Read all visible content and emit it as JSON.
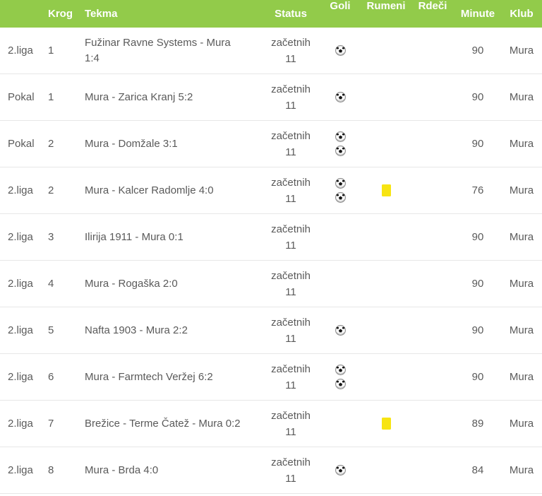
{
  "table": {
    "headers": {
      "league": "",
      "krog": "Krog",
      "tekma": "Tekma",
      "status": "Status",
      "goli": "Goli",
      "rumeni": "Rumeni",
      "rdeci": "Rdeči",
      "minute": "Minute",
      "klub": "Klub"
    },
    "rows": [
      {
        "league": "2.liga",
        "krog": "1",
        "tekma": "Fužinar Ravne Systems - Mura\n1:4",
        "status": "začetnih\n11",
        "goals": 1,
        "yellow_cards": 0,
        "red_cards": 0,
        "minute": "90",
        "klub": "Mura"
      },
      {
        "league": "Pokal",
        "krog": "1",
        "tekma": "Mura - Zarica Kranj 5:2",
        "status": "začetnih\n11",
        "goals": 1,
        "yellow_cards": 0,
        "red_cards": 0,
        "minute": "90",
        "klub": "Mura"
      },
      {
        "league": "Pokal",
        "krog": "2",
        "tekma": "Mura - Domžale 3:1",
        "status": "začetnih\n11",
        "goals": 2,
        "yellow_cards": 0,
        "red_cards": 0,
        "minute": "90",
        "klub": "Mura"
      },
      {
        "league": "2.liga",
        "krog": "2",
        "tekma": "Mura - Kalcer Radomlje 4:0",
        "status": "začetnih\n11",
        "goals": 2,
        "yellow_cards": 1,
        "red_cards": 0,
        "minute": "76",
        "klub": "Mura"
      },
      {
        "league": "2.liga",
        "krog": "3",
        "tekma": "Ilirija 1911 - Mura 0:1",
        "status": "začetnih\n11",
        "goals": 0,
        "yellow_cards": 0,
        "red_cards": 0,
        "minute": "90",
        "klub": "Mura"
      },
      {
        "league": "2.liga",
        "krog": "4",
        "tekma": "Mura - Rogaška 2:0",
        "status": "začetnih\n11",
        "goals": 0,
        "yellow_cards": 0,
        "red_cards": 0,
        "minute": "90",
        "klub": "Mura"
      },
      {
        "league": "2.liga",
        "krog": "5",
        "tekma": "Nafta 1903 - Mura 2:2",
        "status": "začetnih\n11",
        "goals": 1,
        "yellow_cards": 0,
        "red_cards": 0,
        "minute": "90",
        "klub": "Mura"
      },
      {
        "league": "2.liga",
        "krog": "6",
        "tekma": "Mura - Farmtech Veržej 6:2",
        "status": "začetnih\n11",
        "goals": 2,
        "yellow_cards": 0,
        "red_cards": 0,
        "minute": "90",
        "klub": "Mura"
      },
      {
        "league": "2.liga",
        "krog": "7",
        "tekma": "Brežice - Terme Čatež - Mura 0:2",
        "status": "začetnih\n11",
        "goals": 0,
        "yellow_cards": 1,
        "red_cards": 0,
        "minute": "89",
        "klub": "Mura"
      },
      {
        "league": "2.liga",
        "krog": "8",
        "tekma": "Mura - Brda 4:0",
        "status": "začetnih\n11",
        "goals": 1,
        "yellow_cards": 0,
        "red_cards": 0,
        "minute": "84",
        "klub": "Mura"
      }
    ]
  },
  "icons": {
    "goal": "soccer-ball-icon",
    "yellow": "yellow-card-icon",
    "red": "red-card-icon"
  },
  "colors": {
    "header_bg": "#92CB4A",
    "header_text": "#FFFFFF",
    "row_text": "#5A5A5A",
    "separator": "#E7E7E7",
    "yellow_card": "#F7E412"
  }
}
